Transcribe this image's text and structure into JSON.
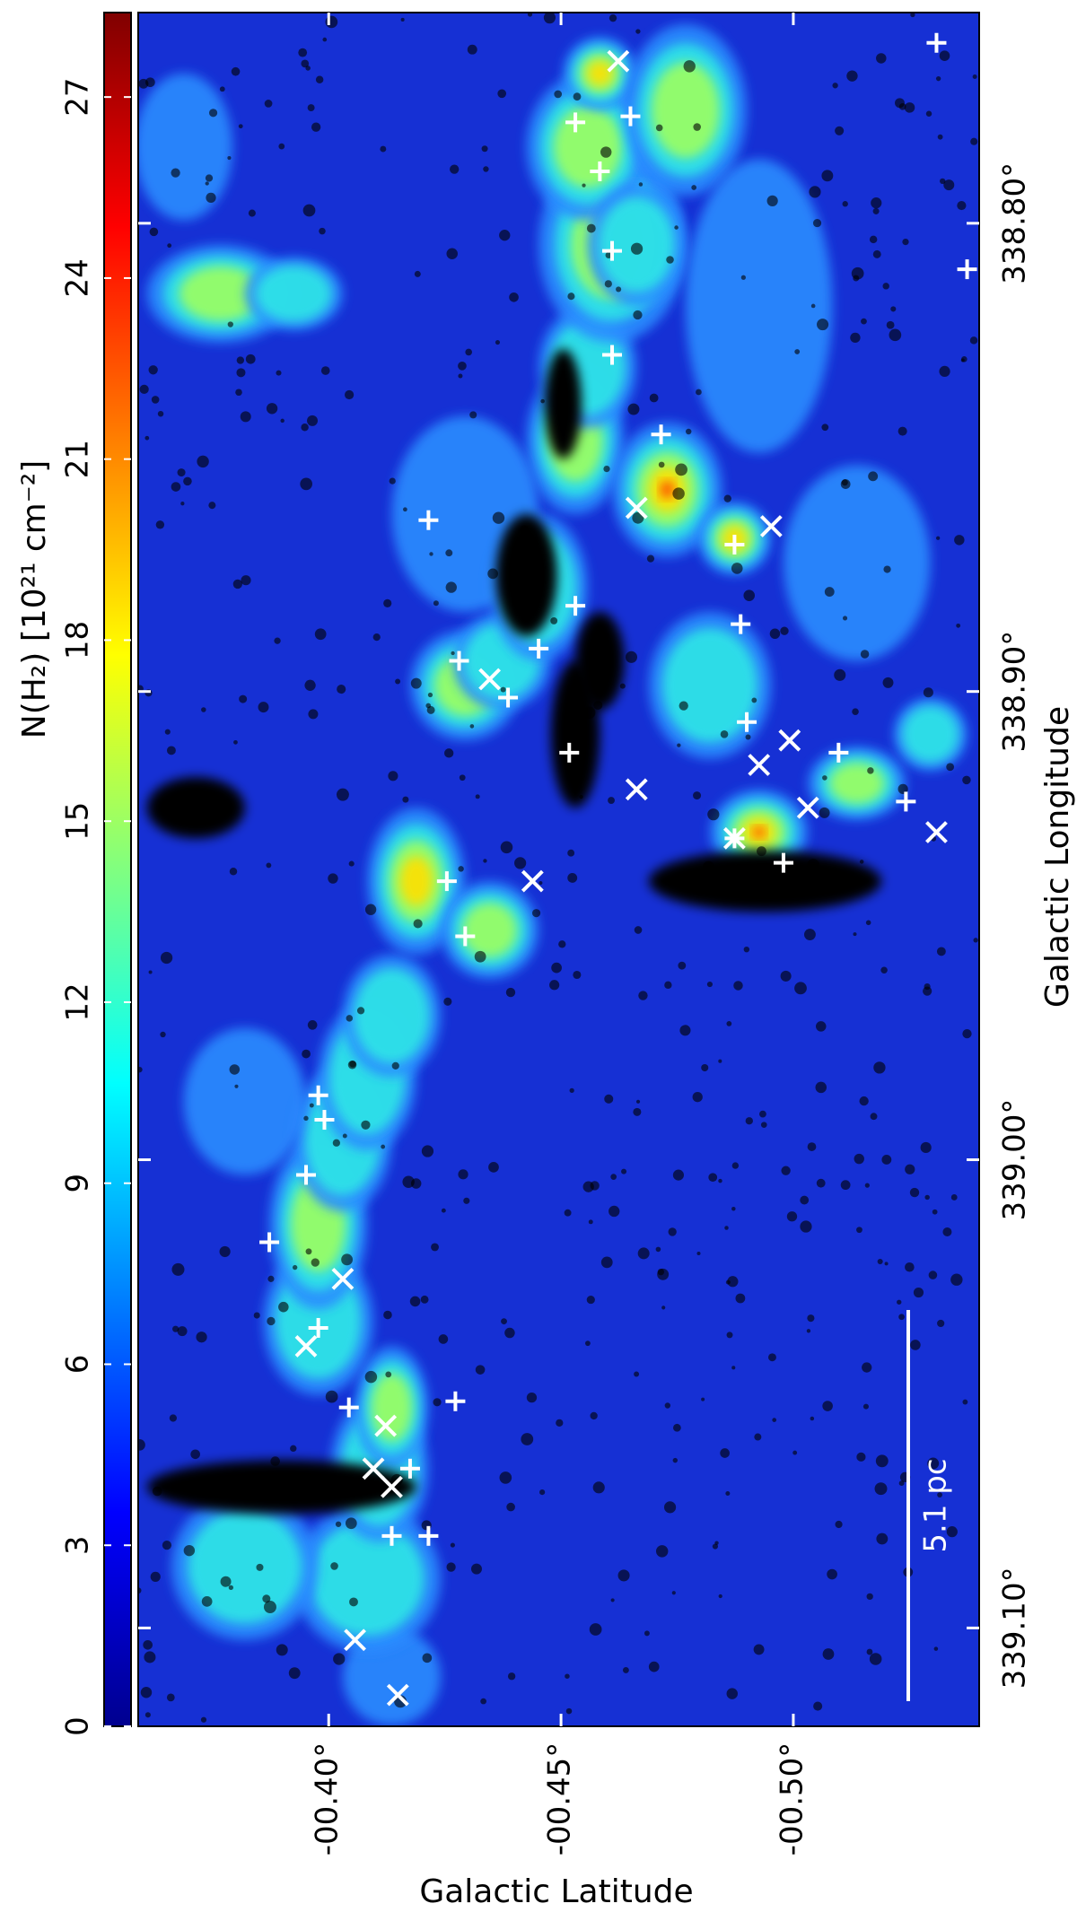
{
  "chart_data": {
    "type": "image",
    "colorbar_label": "N(H₂) [10²¹ cm⁻²]",
    "clim": [
      0,
      28.4
    ],
    "colorbar_ticks": [
      0,
      3,
      6,
      9,
      12,
      15,
      18,
      21,
      24,
      27
    ],
    "colormap": "jet",
    "x_label": "Galactic Latitude",
    "xlim": [
      -0.359,
      -0.54
    ],
    "xticks": [
      {
        "value": -0.4,
        "label": "-00.40°"
      },
      {
        "value": -0.45,
        "label": "-00.45°"
      },
      {
        "value": -0.5,
        "label": "-00.50°"
      }
    ],
    "y_label": "Galactic Longitude",
    "ylim": [
      338.755,
      339.121
    ],
    "yticks": [
      {
        "value": 338.8,
        "label": "338.80°"
      },
      {
        "value": 338.9,
        "label": "338.90°"
      },
      {
        "value": 339.0,
        "label": "339.00°"
      },
      {
        "value": 339.1,
        "label": "339.10°"
      }
    ],
    "scale_bar_label": "5.1 pc"
  }
}
